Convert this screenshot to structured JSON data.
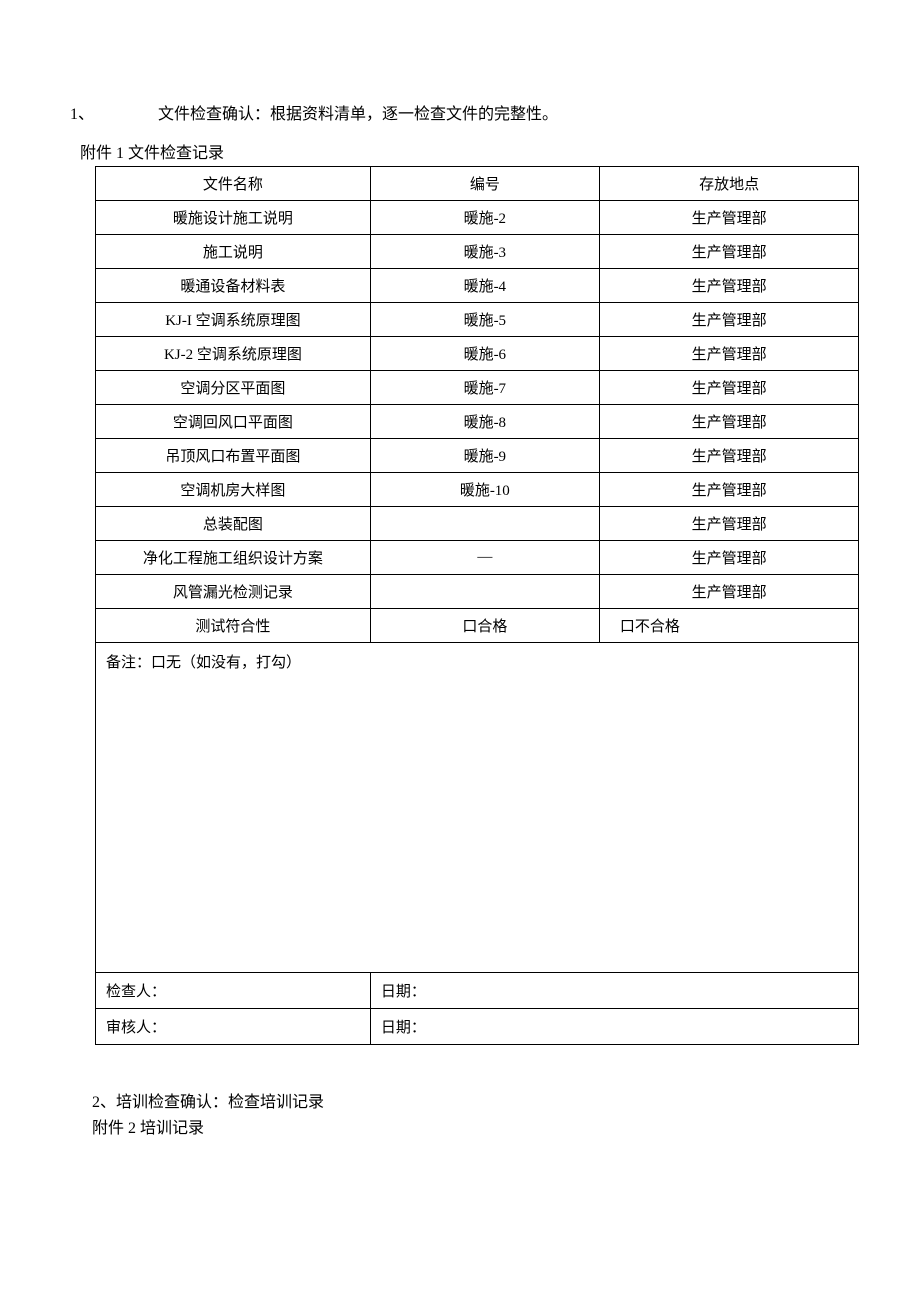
{
  "section1": {
    "number": "1、",
    "title": "文件检查确认：根据资料清单，逐一检查文件的完整性。",
    "attachment_label": "附件 1 文件检查记录"
  },
  "table1": {
    "headers": {
      "name": "文件名称",
      "code": "编号",
      "location": "存放地点"
    },
    "rows": [
      {
        "name": "暖施设计施工说明",
        "code": "暖施-2",
        "location": "生产管理部"
      },
      {
        "name": "施工说明",
        "code": "暖施-3",
        "location": "生产管理部"
      },
      {
        "name": "暖通设备材料表",
        "code": "暖施-4",
        "location": "生产管理部"
      },
      {
        "name": "KJ-I 空调系统原理图",
        "code": "暖施-5",
        "location": "生产管理部"
      },
      {
        "name": "KJ-2 空调系统原理图",
        "code": "暖施-6",
        "location": "生产管理部"
      },
      {
        "name": "空调分区平面图",
        "code": "暖施-7",
        "location": "生产管理部"
      },
      {
        "name": "空调回风口平面图",
        "code": "暖施-8",
        "location": "生产管理部"
      },
      {
        "name": "吊顶风口布置平面图",
        "code": "暖施-9",
        "location": "生产管理部"
      },
      {
        "name": "空调机房大样图",
        "code": "暖施-10",
        "location": "生产管理部"
      },
      {
        "name": "总装配图",
        "code": "",
        "location": "生产管理部"
      },
      {
        "name": "净化工程施工组织设计方案",
        "code": "—",
        "location": "生产管理部"
      },
      {
        "name": "风管漏光检测记录",
        "code": "",
        "location": "生产管理部"
      }
    ],
    "compliance": {
      "label": "测试符合性",
      "pass": "口合格",
      "fail": "口不合格"
    },
    "remarks": "备注：口无（如没有，打勾）",
    "signatures": {
      "inspector": "检查人：",
      "inspector_date": "日期：",
      "reviewer": "审核人：",
      "reviewer_date": "日期："
    }
  },
  "section2": {
    "title": "2、培训检查确认：检查培训记录",
    "attachment_label": "附件 2 培训记录"
  }
}
